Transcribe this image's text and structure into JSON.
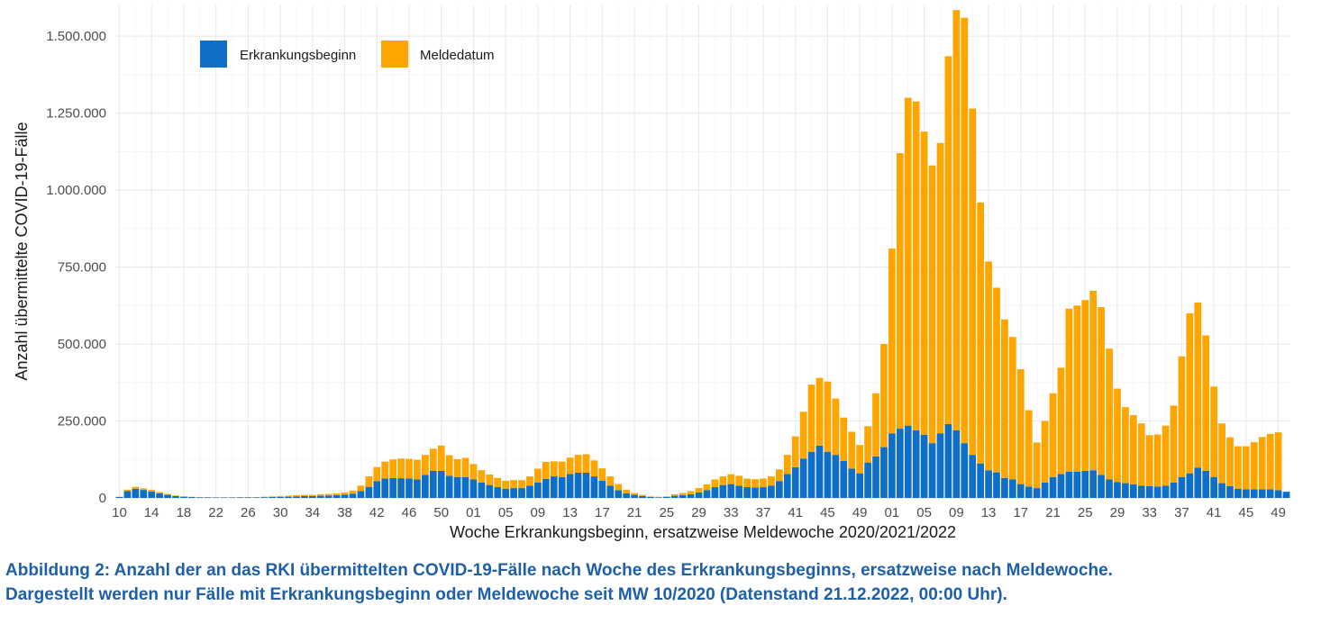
{
  "caption": {
    "line1": "Abbildung 2: Anzahl der an das RKI übermittelten COVID-19-Fälle nach Woche des Erkrankungsbeginns, ersatzweise nach Meldewoche.",
    "line2": "Dargestellt werden nur Fälle mit Erkrankungsbeginn oder Meldewoche seit MW 10/2020 (Datenstand 21.12.2022, 00:00 Uhr)."
  },
  "chart_data": {
    "type": "bar",
    "stacked": true,
    "xlabel": "Woche Erkrankungsbeginn, ersatzweise Meldewoche 2020/2021/2022",
    "ylabel": "Anzahl übermittelte COVID-19-Fälle",
    "ylim": [
      0,
      1600000
    ],
    "yticks": [
      0,
      250000,
      500000,
      750000,
      1000000,
      1250000,
      1500000
    ],
    "ytick_labels": [
      "0",
      "250.000",
      "500.000",
      "750.000",
      "1.000.000",
      "1.250.000",
      "1.500.000"
    ],
    "xtick_labels": [
      "10",
      "14",
      "18",
      "22",
      "26",
      "30",
      "34",
      "38",
      "42",
      "46",
      "50",
      "01",
      "05",
      "09",
      "13",
      "17",
      "21",
      "25",
      "29",
      "33",
      "37",
      "41",
      "45",
      "49",
      "01",
      "05",
      "09",
      "13",
      "17",
      "21",
      "25",
      "29",
      "33",
      "37",
      "41",
      "45",
      "49"
    ],
    "xtick_every": 4,
    "grid": true,
    "legend_position": "top-left",
    "colors": {
      "Erkrankungsbeginn": "#0f6fc6",
      "Meldedatum": "#ffa500",
      "grid": "#ebebeb"
    },
    "series": [
      {
        "name": "Erkrankungsbeginn",
        "values": [
          3000,
          22000,
          30000,
          26000,
          21000,
          15000,
          10000,
          6000,
          4000,
          3000,
          2000,
          2000,
          1500,
          1500,
          1500,
          2000,
          2000,
          2000,
          2500,
          3000,
          3500,
          4000,
          5000,
          6000,
          6000,
          7000,
          8000,
          9000,
          11000,
          14000,
          22000,
          36000,
          55000,
          63000,
          65000,
          64000,
          63000,
          60000,
          75000,
          88000,
          88000,
          72000,
          68000,
          68000,
          60000,
          50000,
          42000,
          35000,
          30000,
          32000,
          32000,
          40000,
          50000,
          62000,
          70000,
          68000,
          78000,
          82000,
          82000,
          70000,
          56000,
          40000,
          25000,
          15000,
          10000,
          6000,
          3000,
          2000,
          3000,
          7000,
          9000,
          12000,
          18000,
          25000,
          35000,
          42000,
          45000,
          40000,
          35000,
          34000,
          35000,
          40000,
          55000,
          78000,
          100000,
          128000,
          150000,
          170000,
          150000,
          140000,
          120000,
          95000,
          80000,
          115000,
          135000,
          165000,
          210000,
          225000,
          235000,
          220000,
          205000,
          178000,
          210000,
          240000,
          220000,
          178000,
          140000,
          112000,
          90000,
          83000,
          65000,
          60000,
          45000,
          37000,
          32000,
          50000,
          68000,
          78000,
          85000,
          85000,
          88000,
          90000,
          75000,
          60000,
          52000,
          48000,
          44000,
          40000,
          38000,
          37000,
          40000,
          50000,
          68000,
          80000,
          98000,
          88000,
          68000,
          48000,
          38000,
          30000,
          28000,
          28000,
          28000,
          28000,
          25000,
          20000
        ]
      },
      {
        "name": "Meldedatum",
        "values": [
          1000,
          5000,
          6000,
          5000,
          5000,
          4000,
          3000,
          2000,
          1000,
          1000,
          1000,
          500,
          500,
          500,
          500,
          1000,
          1000,
          1000,
          1500,
          2000,
          2500,
          3000,
          4000,
          4000,
          4000,
          5000,
          5000,
          6000,
          7000,
          10000,
          18000,
          34000,
          45000,
          55000,
          60000,
          64000,
          64000,
          64000,
          65000,
          72000,
          82000,
          67000,
          58000,
          62000,
          50000,
          40000,
          34000,
          30000,
          26000,
          26000,
          26000,
          30000,
          45000,
          55000,
          49000,
          50000,
          53000,
          58000,
          60000,
          52000,
          40000,
          30000,
          20000,
          12000,
          6000,
          4000,
          2000,
          2000,
          2000,
          5000,
          7000,
          10000,
          14000,
          19000,
          25000,
          28000,
          32000,
          32000,
          28000,
          27000,
          28000,
          30000,
          38000,
          62000,
          100000,
          152000,
          218000,
          220000,
          228000,
          183000,
          141000,
          120000,
          92000,
          118000,
          205000,
          335000,
          600000,
          895000,
          1065000,
          1068000,
          985000,
          902000,
          943000,
          1195000,
          1365000,
          1382000,
          1125000,
          848000,
          678000,
          600000,
          515000,
          463000,
          373000,
          248000,
          148000,
          200000,
          272000,
          345000,
          530000,
          540000,
          555000,
          583000,
          545000,
          425000,
          303000,
          247000,
          225000,
          202000,
          166000,
          169000,
          195000,
          250000,
          392000,
          520000,
          537000,
          440000,
          294000,
          194000,
          159000,
          138000,
          140000,
          153000,
          170000,
          180000,
          188000
        ]
      }
    ]
  }
}
